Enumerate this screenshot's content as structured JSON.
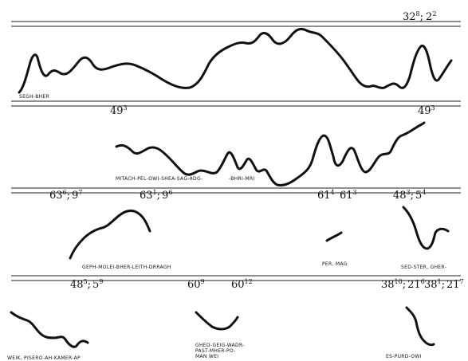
{
  "figure": {
    "band_1": {
      "top_number": "32",
      "top_number_sup_1": "8",
      "top_number_sep": ";",
      "top_number_2": "2",
      "top_number_sup_2": "2",
      "label_left": "SEGH-BHER",
      "mid_left": "49",
      "mid_left_sup": "3",
      "mid_right": "49",
      "mid_right_sup": "3"
    },
    "band_2": {
      "label": "MITACH-PEL-OWI-SHEA-SAG-ADG-",
      "label_2": "-BHRI-MRI",
      "n1": "63",
      "n1_sup": "6",
      "n1_b": "9",
      "n1_b_sup": "7",
      "n2": "63",
      "n2_sup": "1",
      "n2_b": "9",
      "n2_b_sup": "6",
      "n3": "61",
      "n3_sup": "4",
      "n4": "61",
      "n4_sup": "3",
      "n5": "48",
      "n5_sup": "3",
      "n5_b": "5",
      "n5_b_sup": "4"
    },
    "band_3": {
      "label_left": "GEPH-MOLEI-BHER-LEITH-DRRAGH",
      "label_mid": "PER, MAG",
      "label_right": "SED-STER, GHER-",
      "n1": "48",
      "n1_sup": "5",
      "n1_b": "5",
      "n1_b_sup": "9",
      "n2": "60",
      "n2_sup": "9",
      "n3": "60",
      "n3_sup": "12",
      "n4": "38",
      "n4_sup": "10",
      "n4_b": "21",
      "n4_b_sup": "6",
      "n5": "38",
      "n5_sup": "1",
      "n5_b": "21",
      "n5_b_sup": "7"
    },
    "band_4": {
      "label_left": "WEIK, PISERO-AH-KAMER-AP",
      "label_mid_1": "GHED-GEIG-WADR-",
      "label_mid_2": "PAST-MHER-PO-",
      "label_mid_3": "MAN WEI",
      "label_right": "ES-PURD-OWI"
    }
  }
}
